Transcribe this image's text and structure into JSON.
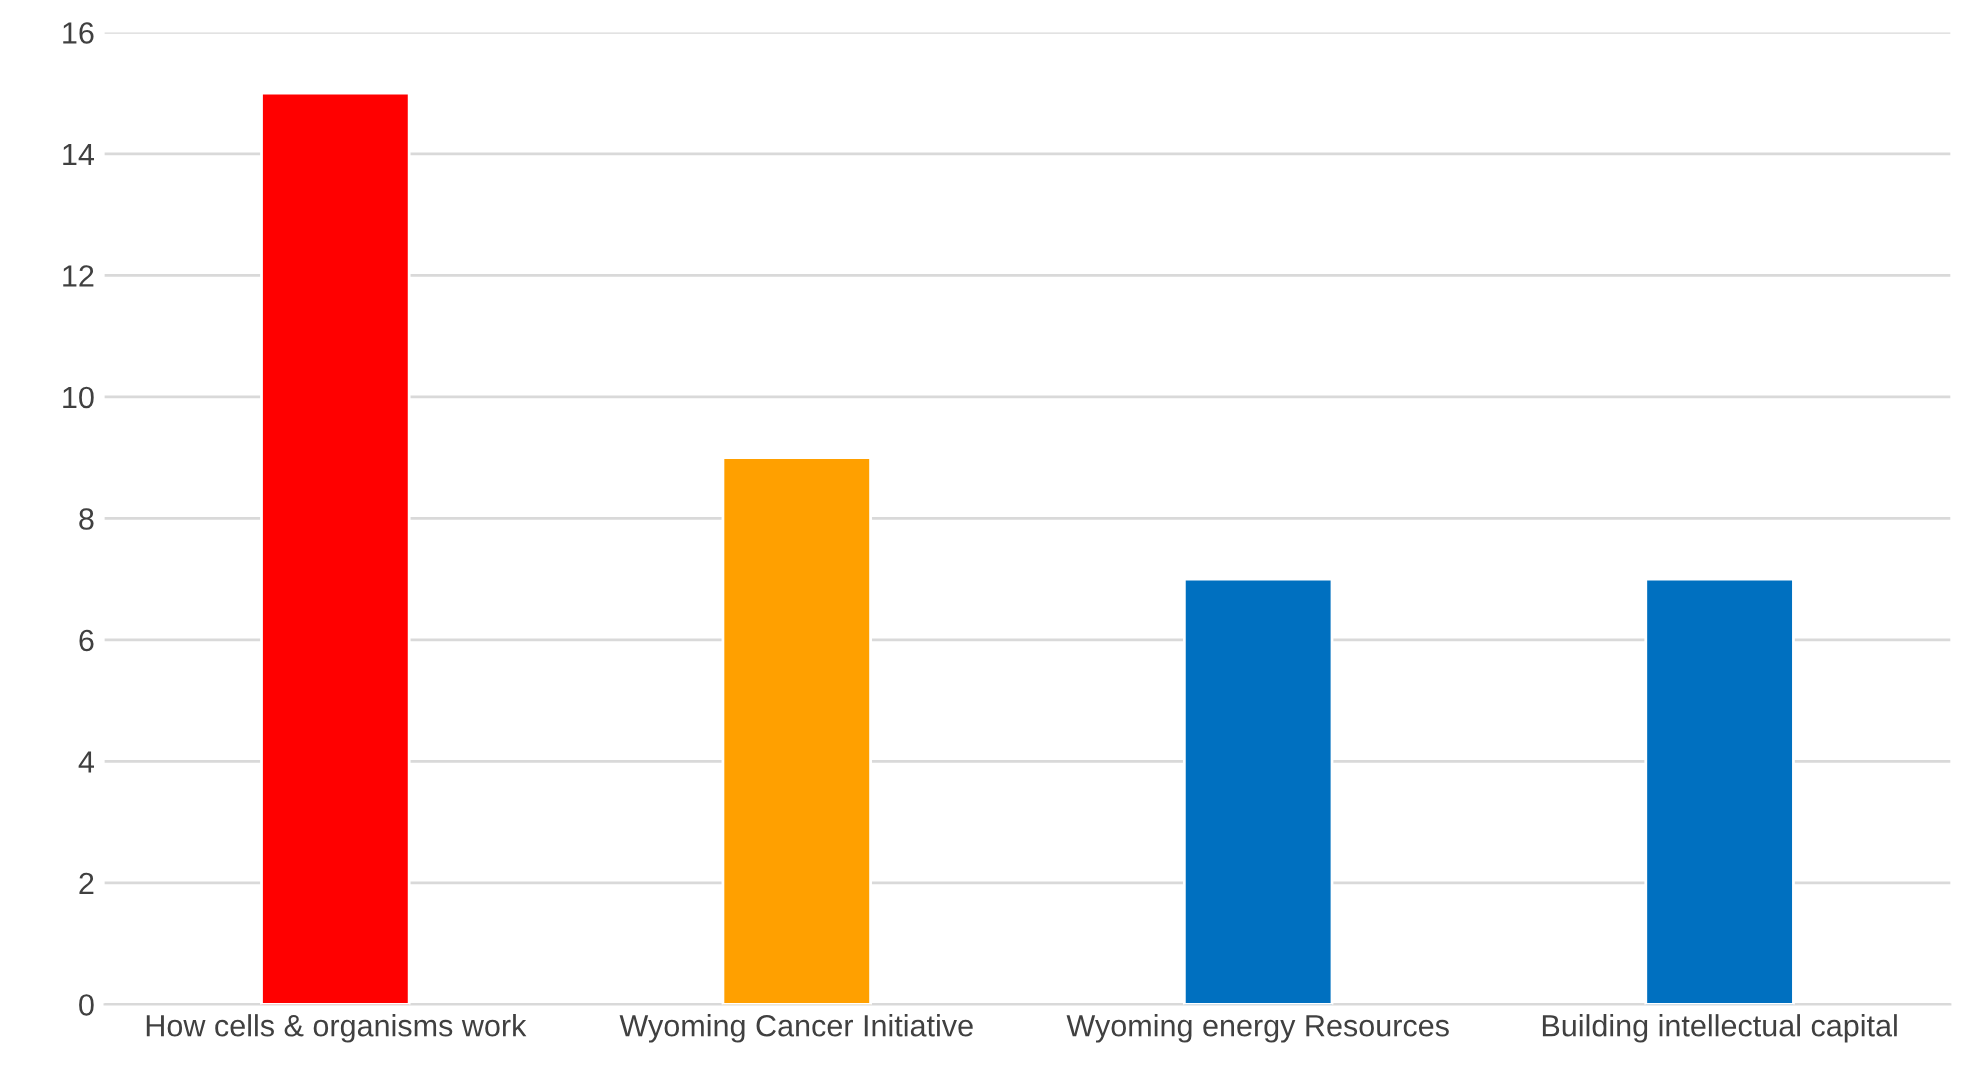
{
  "chart_data": {
    "type": "bar",
    "categories": [
      "How cells & organisms work",
      "Wyoming Cancer Initiative",
      "Wyoming energy Resources",
      "Building intellectual capital"
    ],
    "values": [
      15,
      9,
      7,
      7
    ],
    "colors": [
      "#ff0000",
      "#ffa000",
      "#0070c0",
      "#0070c0"
    ],
    "ylim": [
      0,
      16
    ],
    "yticks": [
      0,
      2,
      4,
      6,
      8,
      10,
      12,
      14,
      16
    ],
    "grid": "y"
  }
}
